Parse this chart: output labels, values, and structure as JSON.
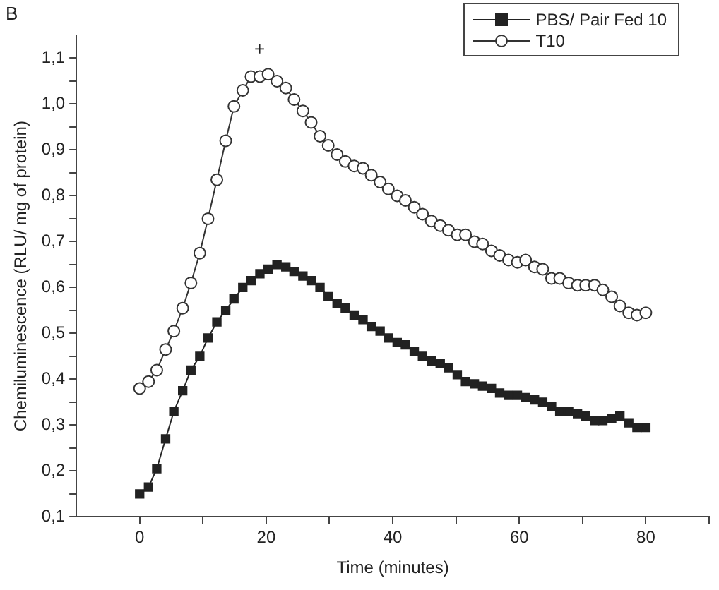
{
  "chart_data": {
    "type": "line",
    "xlabel": "Time (minutes)",
    "ylabel": "Chemiluminescence (RLU/ mg of protein)",
    "annotations": [
      "B",
      "+"
    ],
    "x": [
      0,
      1.4,
      2.7,
      4.1,
      5.4,
      6.8,
      8.1,
      9.5,
      10.8,
      12.2,
      13.6,
      14.9,
      16.3,
      17.6,
      19.0,
      20.3,
      21.7,
      23.1,
      24.4,
      25.8,
      27.1,
      28.5,
      29.8,
      31.2,
      32.5,
      33.9,
      35.3,
      36.6,
      38.0,
      39.3,
      40.7,
      42.0,
      43.4,
      44.7,
      46.1,
      47.5,
      48.8,
      50.2,
      51.5,
      52.9,
      54.2,
      55.6,
      56.9,
      58.3,
      59.7,
      61.0,
      62.4,
      63.7,
      65.1,
      66.4,
      67.8,
      69.2,
      70.5,
      71.9,
      73.2,
      74.6,
      75.9,
      77.3,
      78.6,
      80.0
    ],
    "series": [
      {
        "name": "PBS/ Pair Fed 10",
        "color": "#222222",
        "marker": "square",
        "values": [
          0.15,
          0.165,
          0.205,
          0.27,
          0.33,
          0.375,
          0.42,
          0.45,
          0.49,
          0.525,
          0.55,
          0.575,
          0.6,
          0.615,
          0.63,
          0.64,
          0.65,
          0.645,
          0.635,
          0.625,
          0.615,
          0.6,
          0.58,
          0.565,
          0.555,
          0.54,
          0.53,
          0.515,
          0.505,
          0.49,
          0.48,
          0.475,
          0.46,
          0.45,
          0.44,
          0.435,
          0.425,
          0.41,
          0.395,
          0.39,
          0.385,
          0.38,
          0.37,
          0.365,
          0.365,
          0.36,
          0.355,
          0.35,
          0.34,
          0.33,
          0.33,
          0.325,
          0.32,
          0.31,
          0.31,
          0.315,
          0.32,
          0.305,
          0.295,
          0.295
        ]
      },
      {
        "name": "T10",
        "color": "#333333",
        "marker": "circle",
        "values": [
          0.38,
          0.395,
          0.42,
          0.465,
          0.505,
          0.555,
          0.61,
          0.675,
          0.75,
          0.835,
          0.92,
          0.995,
          1.03,
          1.06,
          1.06,
          1.065,
          1.05,
          1.035,
          1.01,
          0.985,
          0.96,
          0.93,
          0.91,
          0.89,
          0.875,
          0.865,
          0.86,
          0.845,
          0.83,
          0.815,
          0.8,
          0.79,
          0.775,
          0.76,
          0.745,
          0.735,
          0.725,
          0.715,
          0.715,
          0.7,
          0.695,
          0.68,
          0.67,
          0.66,
          0.655,
          0.66,
          0.645,
          0.64,
          0.62,
          0.62,
          0.61,
          0.605,
          0.605,
          0.605,
          0.595,
          0.58,
          0.56,
          0.545,
          0.54,
          0.545
        ]
      }
    ],
    "xlim": [
      -10,
      90
    ],
    "xticks": [
      0,
      {
        "value": 10,
        "label": null
      },
      20,
      {
        "value": 30,
        "label": null
      },
      40,
      {
        "value": 50,
        "label": null
      },
      60,
      {
        "value": 70,
        "label": null
      },
      80,
      {
        "value": 90,
        "label": null
      }
    ],
    "ylim": [
      0.1,
      1.15
    ],
    "yticks": [
      {
        "value": 0.1,
        "label": "0,1"
      },
      {
        "value": 0.15,
        "label": null
      },
      {
        "value": 0.2,
        "label": "0,2"
      },
      {
        "value": 0.25,
        "label": null
      },
      {
        "value": 0.3,
        "label": "0,3"
      },
      {
        "value": 0.35,
        "label": null
      },
      {
        "value": 0.4,
        "label": "0,4"
      },
      {
        "value": 0.45,
        "label": null
      },
      {
        "value": 0.5,
        "label": "0,5"
      },
      {
        "value": 0.55,
        "label": null
      },
      {
        "value": 0.6,
        "label": "0,6"
      },
      {
        "value": 0.65,
        "label": null
      },
      {
        "value": 0.7,
        "label": "0,7"
      },
      {
        "value": 0.75,
        "label": null
      },
      {
        "value": 0.8,
        "label": "0,8"
      },
      {
        "value": 0.85,
        "label": null
      },
      {
        "value": 0.9,
        "label": "0,9"
      },
      {
        "value": 0.95,
        "label": null
      },
      {
        "value": 1.0,
        "label": "1,0"
      },
      {
        "value": 1.05,
        "label": null
      },
      {
        "value": 1.1,
        "label": "1,1"
      }
    ],
    "grid": false,
    "legend": "top right",
    "line_style": "solid"
  }
}
